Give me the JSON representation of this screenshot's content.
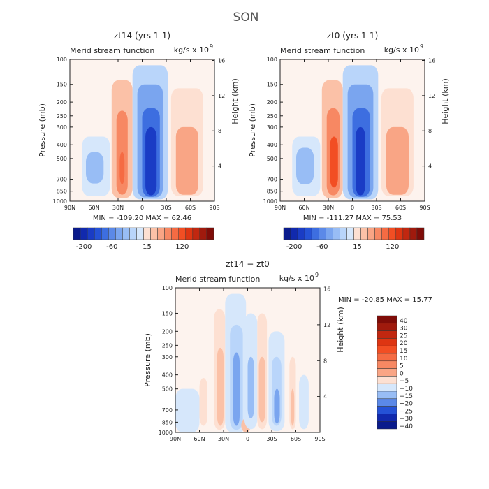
{
  "figure": {
    "title": "SON"
  },
  "colors": {
    "pos": [
      "#fde0d2",
      "#fbc1a7",
      "#f9a585",
      "#f78863",
      "#f56b43",
      "#f24e23",
      "#de3512",
      "#c12710",
      "#a01a0d",
      "#7f0c08"
    ],
    "neg": [
      "#d6e7fb",
      "#b9d5fa",
      "#98bdf5",
      "#7aa5ef",
      "#5b89e8",
      "#3d6ee0",
      "#2552d6",
      "#1a3cc5",
      "#1129ad",
      "#0a1b8c"
    ]
  },
  "chart_data": [
    {
      "type": "contour",
      "title": "zt14 (yrs 1-1)",
      "subtitle": "Merid stream function",
      "units": "kg/s x 10",
      "units_exp": "9",
      "ylabel": "Pressure (mb)",
      "y2label": "Height (km)",
      "xticks": [
        "90N",
        "60N",
        "30N",
        "0",
        "30S",
        "60S",
        "90S"
      ],
      "xvals": [
        -90,
        -60,
        -30,
        0,
        30,
        60,
        90
      ],
      "yticks": [
        "100",
        "150",
        "200",
        "250",
        "300",
        "400",
        "500",
        "700",
        "850",
        "1000"
      ],
      "yvals": [
        100,
        150,
        200,
        250,
        300,
        400,
        500,
        700,
        850,
        1000
      ],
      "y2ticks": [
        "16",
        "12",
        "8",
        "4"
      ],
      "y2vals": [
        16,
        12,
        8,
        4
      ],
      "ylim": [
        1000,
        100
      ],
      "xlim": [
        -90,
        90
      ],
      "stats": "MIN = -109.20   MAX =  62.46",
      "colorbar_labels": [
        "-200",
        "-60",
        "15",
        "120"
      ],
      "cells": [
        {
          "lat_range": [
            -75,
            -40
          ],
          "p_range": [
            350,
            920
          ],
          "level": -1
        },
        {
          "lat_range": [
            -70,
            -48
          ],
          "p_range": [
            450,
            750
          ],
          "level": -3
        },
        {
          "lat_range": [
            -38,
            -12
          ],
          "p_range": [
            140,
            950
          ],
          "level": 2
        },
        {
          "lat_range": [
            -32,
            -18
          ],
          "p_range": [
            230,
            900
          ],
          "level": 4
        },
        {
          "lat_range": [
            -28,
            -22
          ],
          "p_range": [
            450,
            760
          ],
          "level": 5
        },
        {
          "lat_range": [
            -12,
            32
          ],
          "p_range": [
            110,
            970
          ],
          "level": -2
        },
        {
          "lat_range": [
            -6,
            26
          ],
          "p_range": [
            150,
            940
          ],
          "level": -4
        },
        {
          "lat_range": [
            0,
            22
          ],
          "p_range": [
            220,
            930
          ],
          "level": -6
        },
        {
          "lat_range": [
            4,
            18
          ],
          "p_range": [
            300,
            910
          ],
          "level": -8
        },
        {
          "lat_range": [
            36,
            76
          ],
          "p_range": [
            160,
            920
          ],
          "level": 1
        },
        {
          "lat_range": [
            42,
            70
          ],
          "p_range": [
            300,
            900
          ],
          "level": 3
        }
      ]
    },
    {
      "type": "contour",
      "title": "zt0 (yrs 1-1)",
      "subtitle": "Merid stream function",
      "units": "kg/s x 10",
      "units_exp": "9",
      "ylabel": "Pressure (mb)",
      "y2label": "Height (km)",
      "xticks": [
        "90N",
        "60N",
        "30N",
        "0",
        "30S",
        "60S",
        "90S"
      ],
      "xvals": [
        -90,
        -60,
        -30,
        0,
        30,
        60,
        90
      ],
      "yticks": [
        "100",
        "150",
        "200",
        "250",
        "300",
        "400",
        "500",
        "700",
        "850",
        "1000"
      ],
      "yvals": [
        100,
        150,
        200,
        250,
        300,
        400,
        500,
        700,
        850,
        1000
      ],
      "y2ticks": [
        "16",
        "12",
        "8",
        "4"
      ],
      "y2vals": [
        16,
        12,
        8,
        4
      ],
      "ylim": [
        1000,
        100
      ],
      "xlim": [
        -90,
        90
      ],
      "stats": "MIN = -111.27   MAX =  75.53",
      "colorbar_labels": [
        "-200",
        "-60",
        "15",
        "120"
      ],
      "cells": [
        {
          "lat_range": [
            -75,
            -40
          ],
          "p_range": [
            350,
            920
          ],
          "level": -1
        },
        {
          "lat_range": [
            -70,
            -48
          ],
          "p_range": [
            420,
            760
          ],
          "level": -3
        },
        {
          "lat_range": [
            -38,
            -12
          ],
          "p_range": [
            140,
            950
          ],
          "level": 2
        },
        {
          "lat_range": [
            -32,
            -16
          ],
          "p_range": [
            220,
            910
          ],
          "level": 4
        },
        {
          "lat_range": [
            -28,
            -18
          ],
          "p_range": [
            350,
            800
          ],
          "level": 6
        },
        {
          "lat_range": [
            -12,
            32
          ],
          "p_range": [
            110,
            970
          ],
          "level": -2
        },
        {
          "lat_range": [
            -6,
            26
          ],
          "p_range": [
            150,
            940
          ],
          "level": -4
        },
        {
          "lat_range": [
            0,
            22
          ],
          "p_range": [
            220,
            930
          ],
          "level": -6
        },
        {
          "lat_range": [
            4,
            16
          ],
          "p_range": [
            300,
            910
          ],
          "level": -8
        },
        {
          "lat_range": [
            36,
            76
          ],
          "p_range": [
            160,
            920
          ],
          "level": 1
        },
        {
          "lat_range": [
            42,
            70
          ],
          "p_range": [
            300,
            900
          ],
          "level": 3
        }
      ]
    },
    {
      "type": "contour",
      "title": "zt14 − zt0",
      "subtitle": "Merid stream function",
      "units": "kg/s x 10",
      "units_exp": "9",
      "ylabel": "Pressure (mb)",
      "y2label": "Height (km)",
      "xticks": [
        "90N",
        "60N",
        "30N",
        "0",
        "30S",
        "60S",
        "90S"
      ],
      "xvals": [
        -90,
        -60,
        -30,
        0,
        30,
        60,
        90
      ],
      "yticks": [
        "100",
        "150",
        "200",
        "250",
        "300",
        "400",
        "500",
        "700",
        "850",
        "1000"
      ],
      "yvals": [
        100,
        150,
        200,
        250,
        300,
        400,
        500,
        700,
        850,
        1000
      ],
      "y2ticks": [
        "16",
        "12",
        "8",
        "4"
      ],
      "y2vals": [
        16,
        12,
        8,
        4
      ],
      "ylim": [
        1000,
        100
      ],
      "xlim": [
        -90,
        90
      ],
      "stats": "MIN = -20.85   MAX =  15.77",
      "colorbar_labels": [
        "40",
        "30",
        "25",
        "20",
        "15",
        "10",
        "5",
        "0",
        "−5",
        "−10",
        "−15",
        "−20",
        "−25",
        "−30",
        "−40"
      ],
      "cells": [
        {
          "lat_range": [
            -90,
            -60
          ],
          "p_range": [
            500,
            1000
          ],
          "level": -1
        },
        {
          "lat_range": [
            -60,
            -50
          ],
          "p_range": [
            420,
            900
          ],
          "level": 1
        },
        {
          "lat_range": [
            -42,
            -28
          ],
          "p_range": [
            140,
            960
          ],
          "level": 1
        },
        {
          "lat_range": [
            -38,
            -30
          ],
          "p_range": [
            260,
            900
          ],
          "level": 2
        },
        {
          "lat_range": [
            -28,
            -2
          ],
          "p_range": [
            110,
            1000
          ],
          "level": -1
        },
        {
          "lat_range": [
            -22,
            -6
          ],
          "p_range": [
            180,
            960
          ],
          "level": -2
        },
        {
          "lat_range": [
            -18,
            -10
          ],
          "p_range": [
            280,
            900
          ],
          "level": -4
        },
        {
          "lat_range": [
            -8,
            4
          ],
          "p_range": [
            800,
            1000
          ],
          "level": 2
        },
        {
          "lat_range": [
            -4,
            12
          ],
          "p_range": [
            150,
            950
          ],
          "level": -1
        },
        {
          "lat_range": [
            0,
            8
          ],
          "p_range": [
            300,
            800
          ],
          "level": -3
        },
        {
          "lat_range": [
            12,
            24
          ],
          "p_range": [
            150,
            950
          ],
          "level": 1
        },
        {
          "lat_range": [
            14,
            22
          ],
          "p_range": [
            300,
            850
          ],
          "level": 2
        },
        {
          "lat_range": [
            26,
            46
          ],
          "p_range": [
            200,
            980
          ],
          "level": -1
        },
        {
          "lat_range": [
            30,
            42
          ],
          "p_range": [
            300,
            900
          ],
          "level": -2
        },
        {
          "lat_range": [
            33,
            40
          ],
          "p_range": [
            500,
            870
          ],
          "level": -4
        },
        {
          "lat_range": [
            52,
            60
          ],
          "p_range": [
            300,
            950
          ],
          "level": 1
        },
        {
          "lat_range": [
            54,
            58
          ],
          "p_range": [
            500,
            900
          ],
          "level": 2
        },
        {
          "lat_range": [
            64,
            76
          ],
          "p_range": [
            400,
            950
          ],
          "level": -1
        }
      ]
    }
  ]
}
